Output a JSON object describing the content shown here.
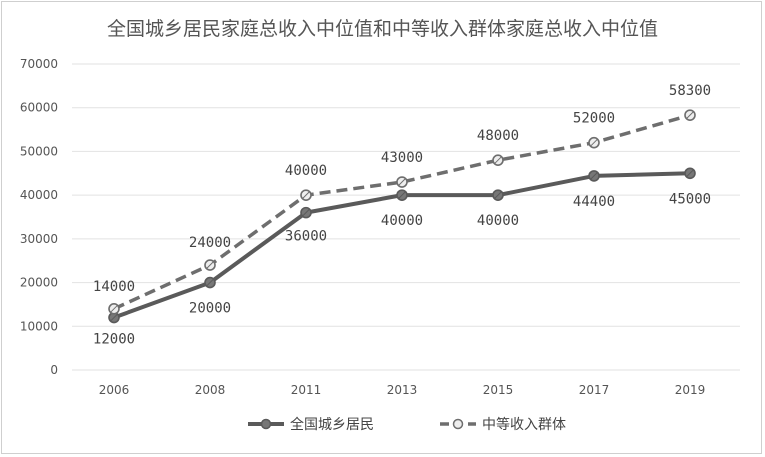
{
  "chart_data": {
    "type": "line",
    "title": "全国城乡居民家庭总收入中位值和中等收入群体家庭总收入中位值",
    "xlabel": "",
    "ylabel": "",
    "categories": [
      "2006",
      "2008",
      "2011",
      "2013",
      "2015",
      "2017",
      "2019"
    ],
    "y_ticks": [
      "0",
      "10000",
      "20000",
      "30000",
      "40000",
      "50000",
      "60000",
      "70000"
    ],
    "ylim": [
      0,
      70000
    ],
    "grid": true,
    "legend_position": "bottom",
    "series": [
      {
        "name": "全国城乡居民",
        "style": "solid",
        "color": "#5a5a5a",
        "values": [
          12000,
          20000,
          36000,
          40000,
          40000,
          44400,
          45000
        ],
        "labels": [
          "12000",
          "20000",
          "36000",
          "40000",
          "40000",
          "44400",
          "45000"
        ]
      },
      {
        "name": "中等收入群体",
        "style": "dashed",
        "color": "#6e6e6e",
        "values": [
          14000,
          24000,
          40000,
          43000,
          48000,
          52000,
          58300
        ],
        "labels": [
          "14000",
          "24000",
          "40000",
          "43000",
          "48000",
          "52000",
          "58300"
        ]
      }
    ]
  }
}
